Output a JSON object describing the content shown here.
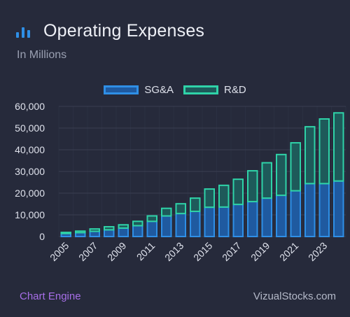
{
  "header": {
    "title": "Operating Expenses",
    "subtitle": "In Millions",
    "icon": "bar-chart-icon"
  },
  "colors": {
    "background": "#262a3b",
    "sga_fill": "#1f5aa0",
    "sga_stroke": "#2f8fe6",
    "rd_fill": "#1e5a5a",
    "rd_stroke": "#2fd3a8",
    "grid": "#3a3f52",
    "accent": "#a76fe8"
  },
  "footer": {
    "left": "Chart Engine",
    "right": "VizualStocks.com"
  },
  "chart_data": {
    "type": "bar",
    "stacked": true,
    "x": [
      2005,
      2006,
      2007,
      2008,
      2009,
      2010,
      2011,
      2012,
      2013,
      2014,
      2015,
      2016,
      2017,
      2018,
      2019,
      2020,
      2021,
      2022,
      2023,
      2024
    ],
    "x_tick_labels": [
      "2005",
      "2007",
      "2009",
      "2011",
      "2013",
      "2015",
      "2017",
      "2019",
      "2021",
      "2023"
    ],
    "series": [
      {
        "name": "SG&A",
        "values": [
          1400,
          1800,
          2400,
          3100,
          3900,
          5000,
          7000,
          9500,
          10600,
          11600,
          13500,
          13600,
          14800,
          16100,
          17700,
          19000,
          21100,
          24400,
          24400,
          25600
        ]
      },
      {
        "name": "R&D",
        "values": [
          500,
          700,
          1100,
          1400,
          1500,
          2000,
          2500,
          3500,
          4500,
          6100,
          8400,
          10000,
          11600,
          14200,
          16300,
          18800,
          22100,
          26200,
          29800,
          31400
        ]
      }
    ],
    "ylim": [
      0,
      60000
    ],
    "yticks": [
      0,
      10000,
      20000,
      30000,
      40000,
      50000,
      60000
    ],
    "ytick_labels": [
      "0",
      "10,000",
      "20,000",
      "30,000",
      "40,000",
      "50,000",
      "60,000"
    ],
    "grid": true,
    "legend_position": "top-center"
  }
}
